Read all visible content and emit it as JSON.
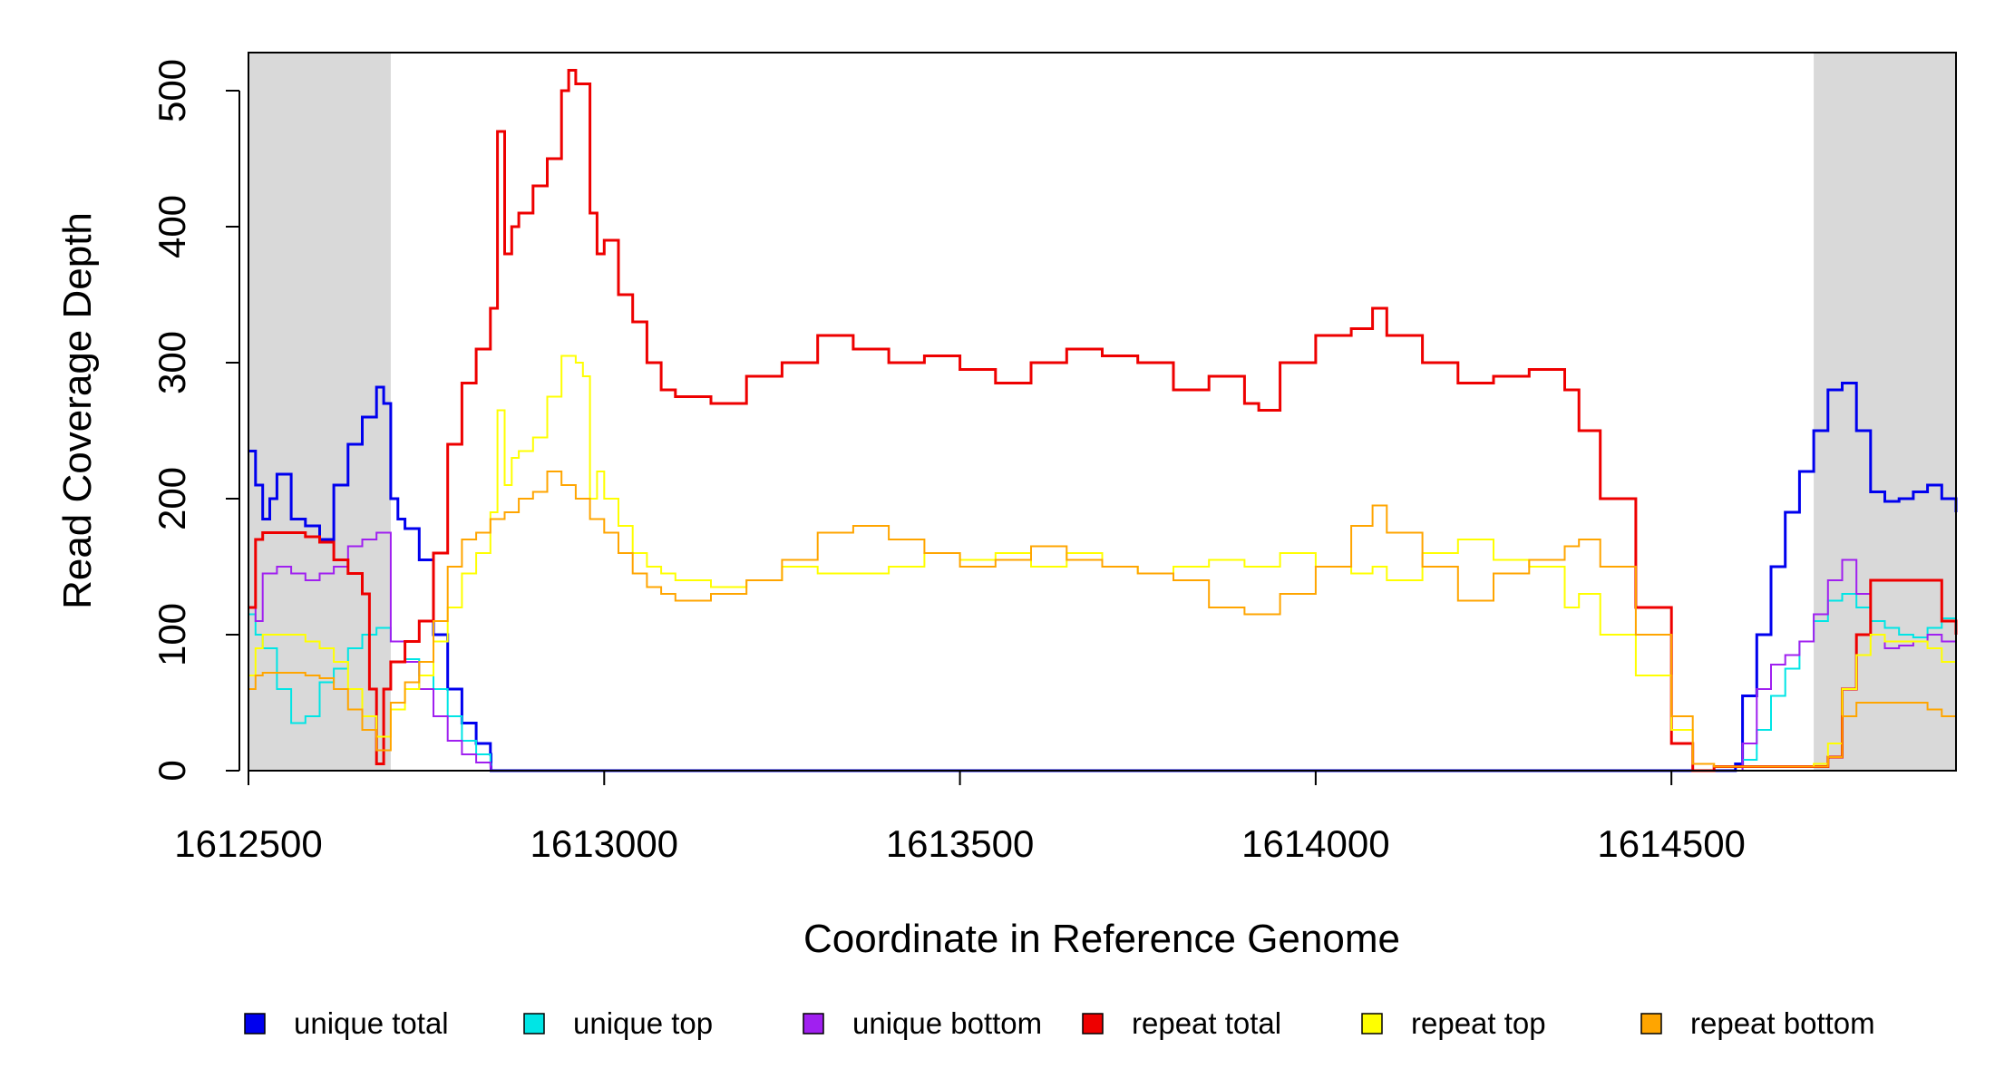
{
  "chart_data": {
    "type": "line",
    "xlabel": "Coordinate in Reference Genome",
    "ylabel": "Read Coverage Depth",
    "xlim": [
      1612500,
      1614900
    ],
    "ylim": [
      0,
      530
    ],
    "x_ticks": [
      1612500,
      1613000,
      1613500,
      1614000,
      1614500
    ],
    "x_tick_labels": [
      "1612500",
      "1613000",
      "1613500",
      "1614000",
      "1614500"
    ],
    "y_ticks": [
      0,
      100,
      200,
      300,
      400,
      500
    ],
    "y_tick_labels": [
      "0",
      "100",
      "200",
      "300",
      "400",
      "500"
    ],
    "grid": false,
    "legend_position": "bottom",
    "shaded_regions": [
      [
        1612500,
        1612700
      ],
      [
        1614700,
        1614900
      ]
    ],
    "series": [
      {
        "name": "unique total",
        "color": "#0000ee",
        "width": 3,
        "x": [
          1612500,
          1612510,
          1612520,
          1612530,
          1612540,
          1612560,
          1612580,
          1612600,
          1612620,
          1612640,
          1612660,
          1612680,
          1612690,
          1612700,
          1612710,
          1612720,
          1612740,
          1612760,
          1612780,
          1612800,
          1612820,
          1612840,
          1612841,
          1614580,
          1614590,
          1614600,
          1614620,
          1614640,
          1614660,
          1614680,
          1614700,
          1614720,
          1614740,
          1614760,
          1614780,
          1614800,
          1614820,
          1614840,
          1614860,
          1614880,
          1614900
        ],
        "y": [
          235,
          210,
          185,
          200,
          218,
          185,
          180,
          170,
          210,
          240,
          260,
          282,
          270,
          200,
          185,
          178,
          155,
          100,
          60,
          35,
          20,
          12,
          0,
          0,
          5,
          55,
          100,
          150,
          190,
          220,
          250,
          280,
          285,
          250,
          205,
          198,
          200,
          205,
          210,
          200,
          190
        ]
      },
      {
        "name": "unique top",
        "color": "#00e5e5",
        "width": 2,
        "x": [
          1612500,
          1612510,
          1612520,
          1612540,
          1612560,
          1612580,
          1612600,
          1612620,
          1612640,
          1612660,
          1612680,
          1612700,
          1612720,
          1612740,
          1612760,
          1612780,
          1612800,
          1612820,
          1612840,
          1612841,
          1614580,
          1614600,
          1614620,
          1614640,
          1614660,
          1614680,
          1614700,
          1614720,
          1614740,
          1614760,
          1614780,
          1614800,
          1614820,
          1614840,
          1614860,
          1614880,
          1614900
        ],
        "y": [
          115,
          100,
          90,
          60,
          35,
          40,
          65,
          75,
          90,
          100,
          105,
          95,
          82,
          70,
          60,
          40,
          22,
          12,
          5,
          0,
          0,
          8,
          30,
          55,
          75,
          95,
          110,
          125,
          130,
          120,
          110,
          105,
          100,
          98,
          105,
          112,
          118
        ]
      },
      {
        "name": "unique bottom",
        "color": "#a020f0",
        "width": 2,
        "x": [
          1612500,
          1612510,
          1612520,
          1612540,
          1612560,
          1612580,
          1612600,
          1612620,
          1612640,
          1612660,
          1612680,
          1612690,
          1612700,
          1612720,
          1612740,
          1612760,
          1612780,
          1612800,
          1612820,
          1612840,
          1612841,
          1614580,
          1614600,
          1614620,
          1614640,
          1614660,
          1614680,
          1614700,
          1614720,
          1614740,
          1614760,
          1614780,
          1614800,
          1614820,
          1614840,
          1614860,
          1614880,
          1614900
        ],
        "y": [
          120,
          110,
          145,
          150,
          145,
          140,
          145,
          150,
          165,
          170,
          175,
          175,
          95,
          80,
          60,
          40,
          22,
          12,
          6,
          3,
          0,
          0,
          20,
          60,
          78,
          85,
          95,
          115,
          140,
          155,
          130,
          100,
          90,
          92,
          95,
          100,
          95,
          85
        ]
      },
      {
        "name": "repeat total",
        "color": "#ee0000",
        "width": 3,
        "x": [
          1612500,
          1612510,
          1612520,
          1612540,
          1612560,
          1612580,
          1612600,
          1612620,
          1612640,
          1612660,
          1612670,
          1612680,
          1612690,
          1612700,
          1612720,
          1612740,
          1612760,
          1612780,
          1612800,
          1612820,
          1612840,
          1612850,
          1612860,
          1612870,
          1612880,
          1612900,
          1612920,
          1612940,
          1612950,
          1612960,
          1612980,
          1612990,
          1613000,
          1613020,
          1613040,
          1613060,
          1613080,
          1613100,
          1613150,
          1613200,
          1613250,
          1613300,
          1613350,
          1613400,
          1613450,
          1613500,
          1613550,
          1613600,
          1613650,
          1613700,
          1613750,
          1613800,
          1613850,
          1613900,
          1613920,
          1613950,
          1614000,
          1614050,
          1614080,
          1614100,
          1614150,
          1614200,
          1614250,
          1614300,
          1614350,
          1614370,
          1614400,
          1614450,
          1614500,
          1614530,
          1614560,
          1614700,
          1614720,
          1614740,
          1614760,
          1614780,
          1614800,
          1614820,
          1614840,
          1614860,
          1614880,
          1614900
        ],
        "y": [
          120,
          170,
          175,
          175,
          175,
          172,
          168,
          155,
          145,
          130,
          60,
          5,
          60,
          80,
          95,
          110,
          160,
          240,
          285,
          310,
          340,
          470,
          380,
          400,
          410,
          430,
          450,
          500,
          515,
          505,
          410,
          380,
          390,
          350,
          330,
          300,
          280,
          275,
          270,
          290,
          300,
          320,
          310,
          300,
          305,
          295,
          285,
          300,
          310,
          305,
          300,
          280,
          290,
          270,
          265,
          300,
          320,
          325,
          340,
          320,
          300,
          285,
          290,
          295,
          280,
          250,
          200,
          120,
          20,
          0,
          3,
          3,
          10,
          60,
          100,
          140,
          140,
          140,
          140,
          140,
          110,
          100
        ]
      },
      {
        "name": "repeat top",
        "color": "#ffff00",
        "width": 2,
        "x": [
          1612500,
          1612510,
          1612520,
          1612540,
          1612560,
          1612580,
          1612600,
          1612620,
          1612640,
          1612660,
          1612680,
          1612700,
          1612720,
          1612740,
          1612760,
          1612780,
          1612800,
          1612820,
          1612840,
          1612850,
          1612860,
          1612870,
          1612880,
          1612900,
          1612920,
          1612940,
          1612960,
          1612970,
          1612980,
          1612990,
          1613000,
          1613020,
          1613040,
          1613060,
          1613080,
          1613100,
          1613150,
          1613200,
          1613250,
          1613300,
          1613350,
          1613400,
          1613450,
          1613500,
          1613550,
          1613600,
          1613650,
          1613700,
          1613750,
          1613800,
          1613850,
          1613900,
          1613950,
          1614000,
          1614050,
          1614080,
          1614100,
          1614150,
          1614200,
          1614250,
          1614300,
          1614350,
          1614370,
          1614400,
          1614450,
          1614500,
          1614530,
          1614560,
          1614700,
          1614720,
          1614740,
          1614760,
          1614780,
          1614800,
          1614820,
          1614840,
          1614860,
          1614880,
          1614900
        ],
        "y": [
          70,
          90,
          100,
          100,
          100,
          95,
          90,
          80,
          60,
          40,
          25,
          45,
          60,
          70,
          95,
          120,
          145,
          160,
          190,
          265,
          210,
          230,
          235,
          245,
          275,
          305,
          300,
          290,
          200,
          220,
          200,
          180,
          160,
          150,
          145,
          140,
          135,
          140,
          150,
          145,
          145,
          150,
          160,
          155,
          160,
          150,
          160,
          150,
          145,
          150,
          155,
          150,
          160,
          150,
          145,
          150,
          140,
          160,
          170,
          155,
          150,
          120,
          130,
          100,
          70,
          30,
          5,
          3,
          5,
          20,
          60,
          85,
          100,
          95,
          95,
          95,
          90,
          80,
          75
        ]
      },
      {
        "name": "repeat bottom",
        "color": "#ffa500",
        "width": 2,
        "x": [
          1612500,
          1612510,
          1612520,
          1612540,
          1612560,
          1612580,
          1612600,
          1612620,
          1612640,
          1612660,
          1612680,
          1612700,
          1612720,
          1612740,
          1612760,
          1612780,
          1612800,
          1612820,
          1612840,
          1612860,
          1612880,
          1612900,
          1612920,
          1612940,
          1612960,
          1612980,
          1613000,
          1613020,
          1613040,
          1613060,
          1613080,
          1613100,
          1613150,
          1613200,
          1613250,
          1613300,
          1613350,
          1613400,
          1613450,
          1613500,
          1613550,
          1613600,
          1613650,
          1613700,
          1613750,
          1613800,
          1613850,
          1613900,
          1613950,
          1614000,
          1614050,
          1614080,
          1614100,
          1614150,
          1614200,
          1614250,
          1614300,
          1614350,
          1614370,
          1614400,
          1614450,
          1614500,
          1614530,
          1614560,
          1614700,
          1614720,
          1614740,
          1614760,
          1614780,
          1614800,
          1614820,
          1614840,
          1614860,
          1614880,
          1614900
        ],
        "y": [
          60,
          70,
          72,
          72,
          72,
          70,
          68,
          60,
          45,
          30,
          15,
          50,
          65,
          80,
          110,
          150,
          170,
          175,
          185,
          190,
          200,
          205,
          220,
          210,
          200,
          185,
          175,
          160,
          145,
          135,
          130,
          125,
          130,
          140,
          155,
          175,
          180,
          170,
          160,
          150,
          155,
          165,
          155,
          150,
          145,
          140,
          120,
          115,
          130,
          150,
          180,
          195,
          175,
          150,
          125,
          145,
          155,
          165,
          170,
          150,
          100,
          40,
          5,
          3,
          3,
          10,
          40,
          50,
          50,
          50,
          50,
          50,
          45,
          40,
          35
        ]
      }
    ]
  },
  "legend_items": [
    {
      "label": "unique total",
      "color": "#0000ee"
    },
    {
      "label": "unique top",
      "color": "#00e5e5"
    },
    {
      "label": "unique bottom",
      "color": "#a020f0"
    },
    {
      "label": "repeat total",
      "color": "#ee0000"
    },
    {
      "label": "repeat top",
      "color": "#ffff00"
    },
    {
      "label": "repeat bottom",
      "color": "#ffa500"
    }
  ],
  "colors": {
    "shade": "#d9d9d9",
    "axis": "#000000",
    "baseline": "#5a5ae8"
  }
}
